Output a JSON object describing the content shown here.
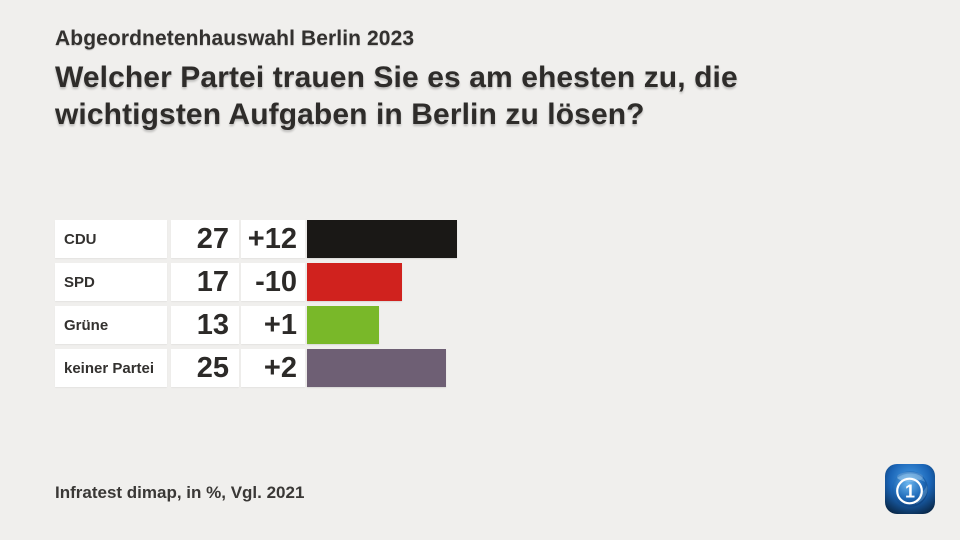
{
  "header": {
    "kicker": "Abgeordnetenhauswahl Berlin 2023",
    "title_lines": [
      "Welcher Partei trauen Sie es am ehesten zu, die",
      "wichtigsten Aufgaben in Berlin zu lösen?"
    ]
  },
  "footer": {
    "source": "Infratest dimap, in %, Vgl. 2021"
  },
  "logo": {
    "name": "ard-tagesschau-app-icon",
    "digit": "1"
  },
  "colors": {
    "background": "#f0efed",
    "cell_background": "#ffffff",
    "text": "#2e2c2a",
    "bar_cdu": "#1a1816",
    "bar_spd": "#d0221e",
    "bar_gruene": "#79b829",
    "bar_keiner_partei": "#6e5f74",
    "logo_blue": "#1a64b6"
  },
  "chart_data": {
    "type": "bar",
    "orientation": "horizontal",
    "title": "Welcher Partei trauen Sie es am ehesten zu, die wichtigsten Aufgaben in Berlin zu lösen?",
    "subtitle": "Abgeordnetenhauswahl Berlin 2023",
    "categories": [
      "CDU",
      "SPD",
      "Grüne",
      "keiner Partei"
    ],
    "values": [
      27,
      17,
      13,
      25
    ],
    "changes": [
      "+12",
      "-10",
      "+1",
      "+2"
    ],
    "bar_colors": [
      "#1a1816",
      "#d0221e",
      "#79b829",
      "#6e5f74"
    ],
    "unit": "%",
    "comparison": "Vgl. 2021",
    "source": "Infratest dimap",
    "xlim": [
      0,
      30
    ],
    "grid": false,
    "legend": "none"
  }
}
